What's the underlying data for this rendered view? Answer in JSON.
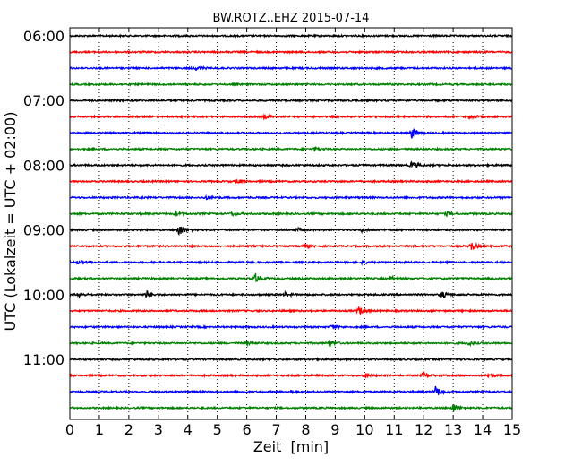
{
  "chart_data": {
    "type": "line",
    "title": "BW.ROTZ..EHZ 2015-07-14",
    "xlabel": "Zeit  [min]",
    "ylabel": "UTC (Lokalzeit = UTC + 02:00)",
    "xlim": [
      0,
      15
    ],
    "x_ticks": [
      "0",
      "1",
      "2",
      "3",
      "4",
      "5",
      "6",
      "7",
      "8",
      "9",
      "10",
      "11",
      "12",
      "13",
      "14",
      "15"
    ],
    "y_ticks": [
      "06:00",
      "07:00",
      "08:00",
      "09:00",
      "10:00",
      "11:00"
    ],
    "grid": true,
    "trace_colors": [
      "#000000",
      "#ff0000",
      "#0000ff",
      "#008000"
    ],
    "traces": [
      {
        "start": "06:00",
        "events": []
      },
      {
        "start": "06:15",
        "events": []
      },
      {
        "start": "06:30",
        "events": [
          {
            "t": 4.3,
            "amp": 2
          }
        ]
      },
      {
        "start": "06:45",
        "events": []
      },
      {
        "start": "07:00",
        "events": []
      },
      {
        "start": "07:15",
        "events": [
          {
            "t": 6.6,
            "amp": 2
          },
          {
            "t": 13.6,
            "amp": 2
          }
        ]
      },
      {
        "start": "07:30",
        "events": [
          {
            "t": 11.6,
            "amp": 6
          }
        ]
      },
      {
        "start": "07:45",
        "events": [
          {
            "t": 8.3,
            "amp": 2
          }
        ]
      },
      {
        "start": "08:00",
        "events": [
          {
            "t": 11.6,
            "amp": 4
          }
        ]
      },
      {
        "start": "08:15",
        "events": [
          {
            "t": 5.7,
            "amp": 2
          }
        ]
      },
      {
        "start": "08:30",
        "events": [
          {
            "t": 4.6,
            "amp": 2
          }
        ]
      },
      {
        "start": "08:45",
        "events": [
          {
            "t": 3.6,
            "amp": 2
          },
          {
            "t": 5.5,
            "amp": 2
          },
          {
            "t": 12.8,
            "amp": 2
          }
        ]
      },
      {
        "start": "09:00",
        "events": [
          {
            "t": 3.7,
            "amp": 7
          },
          {
            "t": 7.7,
            "amp": 2
          },
          {
            "t": 9.9,
            "amp": 2
          }
        ]
      },
      {
        "start": "09:15",
        "events": [
          {
            "t": 7.9,
            "amp": 2
          },
          {
            "t": 13.6,
            "amp": 5
          }
        ]
      },
      {
        "start": "09:30",
        "events": [
          {
            "t": 0.3,
            "amp": 2
          },
          {
            "t": 9.9,
            "amp": 2
          }
        ]
      },
      {
        "start": "09:45",
        "events": [
          {
            "t": 6.3,
            "amp": 5
          },
          {
            "t": 10.9,
            "amp": 2
          }
        ]
      },
      {
        "start": "10:00",
        "events": [
          {
            "t": 0.3,
            "amp": 2
          },
          {
            "t": 2.6,
            "amp": 4
          },
          {
            "t": 7.3,
            "amp": 2
          },
          {
            "t": 12.6,
            "amp": 4
          }
        ]
      },
      {
        "start": "10:15",
        "events": [
          {
            "t": 9.8,
            "amp": 4
          }
        ]
      },
      {
        "start": "10:30",
        "events": [
          {
            "t": 8.9,
            "amp": 2
          }
        ]
      },
      {
        "start": "10:45",
        "events": [
          {
            "t": 6.0,
            "amp": 2
          },
          {
            "t": 8.8,
            "amp": 3
          },
          {
            "t": 13.5,
            "amp": 2
          }
        ]
      },
      {
        "start": "11:00",
        "events": []
      },
      {
        "start": "11:15",
        "events": [
          {
            "t": 10.0,
            "amp": 2
          },
          {
            "t": 12.0,
            "amp": 4
          },
          {
            "t": 14.2,
            "amp": 2
          }
        ]
      },
      {
        "start": "11:30",
        "events": [
          {
            "t": 7.5,
            "amp": 2
          },
          {
            "t": 12.4,
            "amp": 6
          }
        ]
      },
      {
        "start": "11:45",
        "events": [
          {
            "t": 13.0,
            "amp": 5
          }
        ]
      }
    ]
  }
}
